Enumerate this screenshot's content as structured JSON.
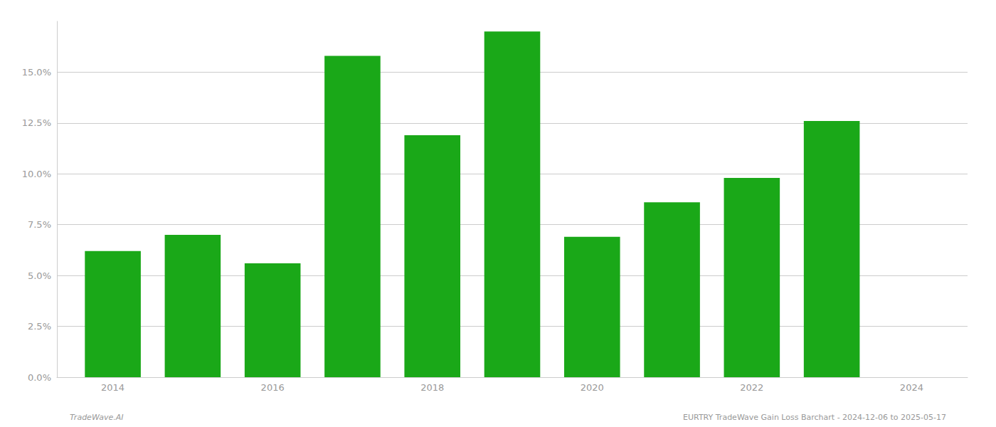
{
  "chart_data": {
    "type": "bar",
    "x": [
      2014,
      2015,
      2016,
      2017,
      2018,
      2019,
      2020,
      2021,
      2022,
      2023
    ],
    "values": [
      0.062,
      0.07,
      0.056,
      0.158,
      0.119,
      0.17,
      0.069,
      0.086,
      0.098,
      0.126
    ],
    "color": "#1aa818",
    "xlim": [
      2013.3,
      2024.7
    ],
    "xticks": [
      2014,
      2016,
      2018,
      2020,
      2022,
      2024
    ],
    "ylim": [
      0,
      0.175
    ],
    "yticks": [
      {
        "value": 0.0,
        "label": "0.0%"
      },
      {
        "value": 0.025,
        "label": "2.5%"
      },
      {
        "value": 0.05,
        "label": "5.0%"
      },
      {
        "value": 0.075,
        "label": "7.5%"
      },
      {
        "value": 0.1,
        "label": "10.0%"
      },
      {
        "value": 0.125,
        "label": "12.5%"
      },
      {
        "value": 0.15,
        "label": "15.0%"
      }
    ],
    "grid": true,
    "annotations": [
      "TradeWave.AI",
      "EURTRY TradeWave Gain Loss Barchart - 2024-12-06 to 2025-05-17"
    ]
  }
}
